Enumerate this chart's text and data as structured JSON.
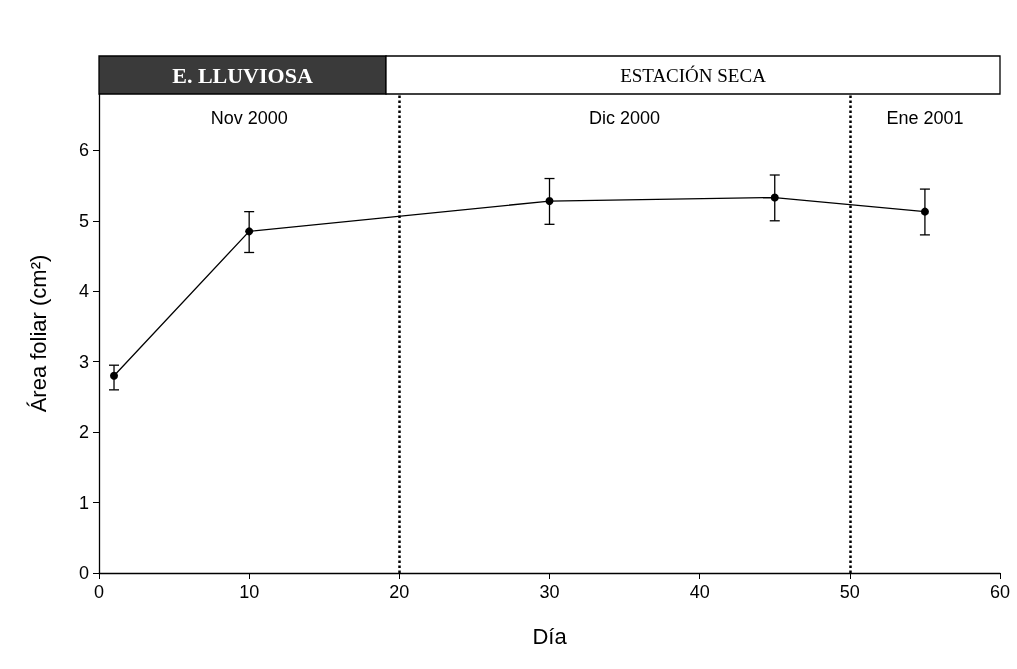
{
  "chart_data": {
    "type": "line",
    "xlabel": "Día",
    "ylabel": "Área foliar (cm²)",
    "x": [
      1,
      10,
      30,
      45,
      55
    ],
    "series": [
      {
        "color": "#000000",
        "values": [
          2.8,
          4.85,
          5.28,
          5.33,
          5.13
        ],
        "errors": [
          [
            2.6,
            2.95
          ],
          [
            4.55,
            5.13
          ],
          [
            4.95,
            5.6
          ],
          [
            5.0,
            5.65
          ],
          [
            4.8,
            5.45
          ]
        ]
      }
    ],
    "xlim": [
      0,
      60
    ],
    "xticks": [
      0,
      10,
      20,
      30,
      40,
      50,
      60
    ],
    "ylim": [
      0,
      6.8
    ],
    "yticks": [
      0,
      1,
      2,
      3,
      4,
      5,
      6
    ],
    "grid": false,
    "marker": "circle",
    "line_style": "solid",
    "ref_lines": [
      {
        "axis": "x",
        "value": 20,
        "line_style": "dotted",
        "color": "#000000"
      },
      {
        "axis": "x",
        "value": 50,
        "line_style": "dotted",
        "color": "#000000"
      }
    ],
    "annotations": [
      "E. LLUVIOSA",
      "ESTACIÓN SECA",
      "Nov 2000",
      "Dic 2000",
      "Ene 2001"
    ]
  }
}
